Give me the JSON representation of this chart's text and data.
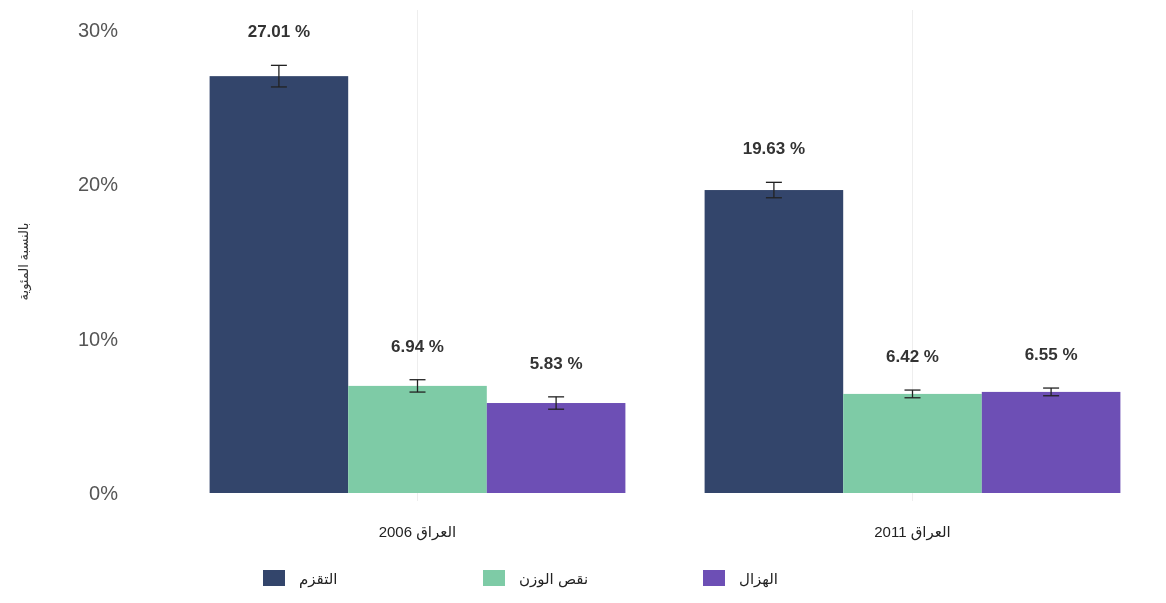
{
  "chart_data": {
    "type": "bar",
    "ylabel": "بالنسبة المئوية",
    "categories": [
      "العراق 2006",
      "العراق 2011"
    ],
    "series": [
      {
        "name": "التقزم",
        "color": "#33456b",
        "values": [
          27.01,
          19.63
        ],
        "errors": [
          0.7,
          0.5
        ],
        "value_labels": [
          "27.01 %",
          "19.63 %"
        ]
      },
      {
        "name": "نقص الوزن",
        "color": "#7ecba6",
        "values": [
          6.94,
          6.42
        ],
        "errors": [
          0.4,
          0.25
        ],
        "value_labels": [
          "6.94 %",
          "6.42 %"
        ]
      },
      {
        "name": "الهزال",
        "color": "#6d4fb5",
        "values": [
          5.83,
          6.55
        ],
        "errors": [
          0.4,
          0.25
        ],
        "value_labels": [
          "5.83 %",
          "6.55 %"
        ]
      }
    ],
    "ylim": [
      0,
      30
    ],
    "yticks": [
      {
        "value": 0,
        "label": "0%"
      },
      {
        "value": 10,
        "label": "10%"
      },
      {
        "value": 20,
        "label": "20%"
      },
      {
        "value": 30,
        "label": "30%"
      }
    ],
    "grid": "x",
    "legend": "bottom"
  }
}
